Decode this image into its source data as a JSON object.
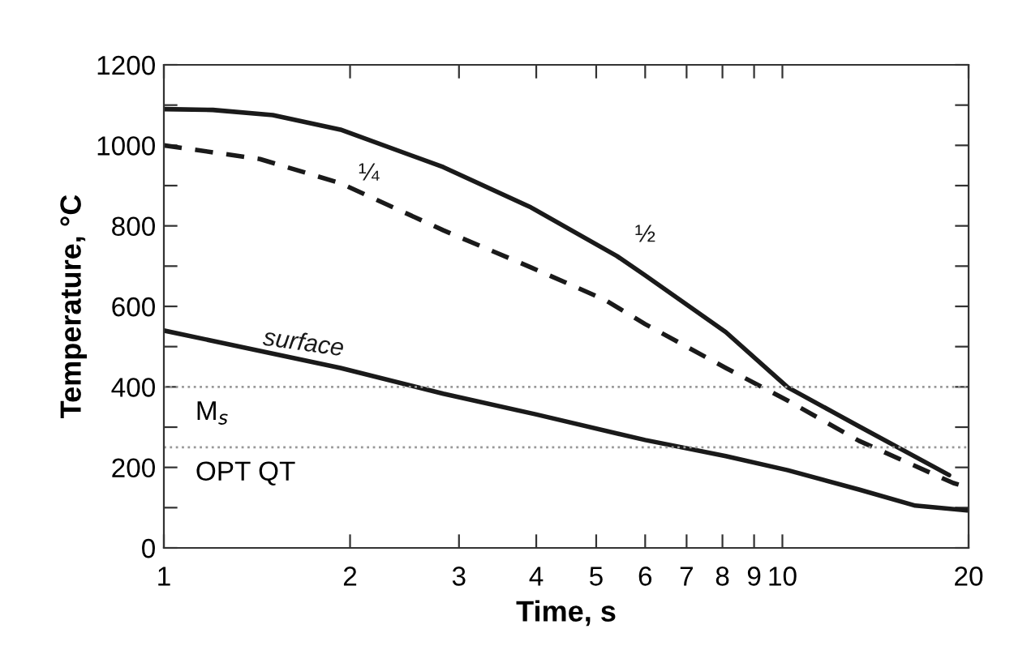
{
  "chart_data": {
    "type": "line",
    "xlabel": "Time, s",
    "ylabel": "Temperature, °C",
    "log": "x",
    "xlim": [
      1,
      20
    ],
    "xticks": [
      1,
      2,
      3,
      4,
      5,
      6,
      7,
      8,
      9,
      10,
      20
    ],
    "ylim": [
      0,
      1200
    ],
    "yticks": [
      0,
      {
        "value": 100,
        "label": null
      },
      200,
      {
        "value": 300,
        "label": null
      },
      400,
      {
        "value": 500,
        "label": null
      },
      600,
      {
        "value": 700,
        "label": null
      },
      800,
      {
        "value": 900,
        "label": null
      },
      1000,
      {
        "value": 1100,
        "label": null
      },
      1200
    ],
    "grid": false,
    "legend": false,
    "marker": "none",
    "series": [
      {
        "name": "½",
        "color": "#1a1a1a",
        "line_style": "solid",
        "x": [
          1,
          1.2,
          1.5,
          1.93,
          2.83,
          3.92,
          5.4,
          6,
          8.1,
          10.2,
          13.3,
          18.6
        ],
        "values": [
          1090,
          1088,
          1075,
          1039,
          946,
          846,
          725,
          677,
          536,
          399,
          302,
          181
        ]
      },
      {
        "name": "¼",
        "color": "#1a1a1a",
        "line_style": "dashed",
        "x": [
          1,
          1.43,
          1.93,
          2.83,
          3.92,
          5.17,
          6,
          8.1,
          10.2,
          13.3,
          18.9,
          20
        ],
        "values": [
          1000,
          966,
          906,
          789,
          697,
          616,
          556,
          447,
          366,
          266,
          161,
          150
        ]
      },
      {
        "name": "surface",
        "color": "#1a1a1a",
        "line_style": "solid",
        "x": [
          1,
          1.93,
          2.83,
          3.99,
          6,
          8.1,
          10.2,
          13.3,
          16.4,
          19.9,
          20
        ],
        "values": [
          540,
          447,
          383,
          332,
          268,
          228,
          193,
          145,
          105,
          93,
          95
        ]
      }
    ],
    "ref_lines": [
      {
        "axis": "y",
        "value": 400,
        "label": "M$_{s}$",
        "color": "#999999",
        "line_style": "dotted"
      },
      {
        "axis": "y",
        "value": 250,
        "label": "OPT QT",
        "color": "#999999",
        "line_style": "dotted"
      }
    ]
  }
}
